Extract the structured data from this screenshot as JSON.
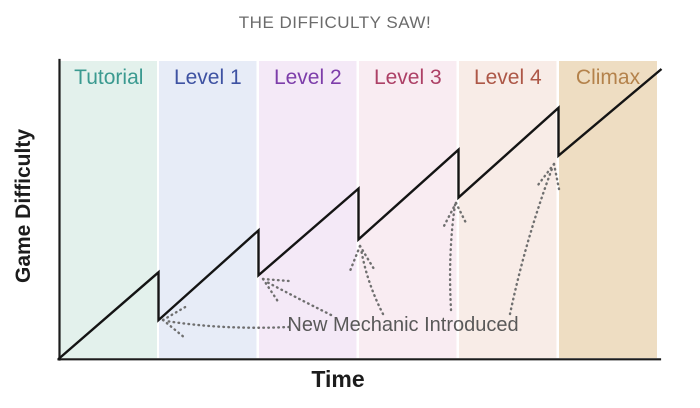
{
  "title": {
    "text": "THE DIFFICULTY SAW!",
    "color": "#6b6b6b"
  },
  "axes": {
    "x_label": "Time",
    "y_label": "Game Difficulty",
    "color": "#1c1c1c"
  },
  "line_color": "#141414",
  "bands": [
    {
      "label": "Tutorial",
      "fill": "#e3f1ec",
      "text_color": "#3b9a90"
    },
    {
      "label": "Level 1",
      "fill": "#e7ecf7",
      "text_color": "#3e52a2"
    },
    {
      "label": "Level 2",
      "fill": "#f4e9f7",
      "text_color": "#7d3daa"
    },
    {
      "label": "Level 3",
      "fill": "#f9ecf2",
      "text_color": "#ad4066"
    },
    {
      "label": "Level 4",
      "fill": "#f8ece7",
      "text_color": "#ad5747"
    },
    {
      "label": "Climax",
      "fill": "#eeddc2",
      "text_color": "#b4824b"
    }
  ],
  "annotation": {
    "label": "New Mechanic Introduced",
    "color": "#595959",
    "arrow_color": "#6f6f6f"
  },
  "chart_data": {
    "type": "line",
    "title": "THE DIFFICULTY SAW!",
    "xlabel": "Time",
    "ylabel": "Game Difficulty",
    "grid": false,
    "legend": false,
    "x_axis": {
      "range": [
        0,
        6
      ],
      "ticks": "none",
      "unit": "level-band-index"
    },
    "y_axis": {
      "range": [
        0,
        1
      ],
      "ticks": "none",
      "unit": "relative-difficulty"
    },
    "bands": [
      "Tutorial",
      "Level 1",
      "Level 2",
      "Level 3",
      "Level 4",
      "Climax"
    ],
    "series": [
      {
        "name": "Game Difficulty",
        "shape": "sawtooth",
        "points": [
          [
            0,
            0
          ],
          [
            1,
            0.29
          ],
          [
            1,
            0.13
          ],
          [
            2,
            0.43
          ],
          [
            2,
            0.28
          ],
          [
            3,
            0.57
          ],
          [
            3,
            0.4
          ],
          [
            4,
            0.7
          ],
          [
            4,
            0.54
          ],
          [
            5,
            0.84
          ],
          [
            5,
            0.68
          ],
          [
            6.03,
            0.97
          ]
        ]
      }
    ],
    "annotations": [
      {
        "text": "New Mechanic Introduced",
        "targets": "the five difficulty drops at each level boundary"
      }
    ]
  }
}
